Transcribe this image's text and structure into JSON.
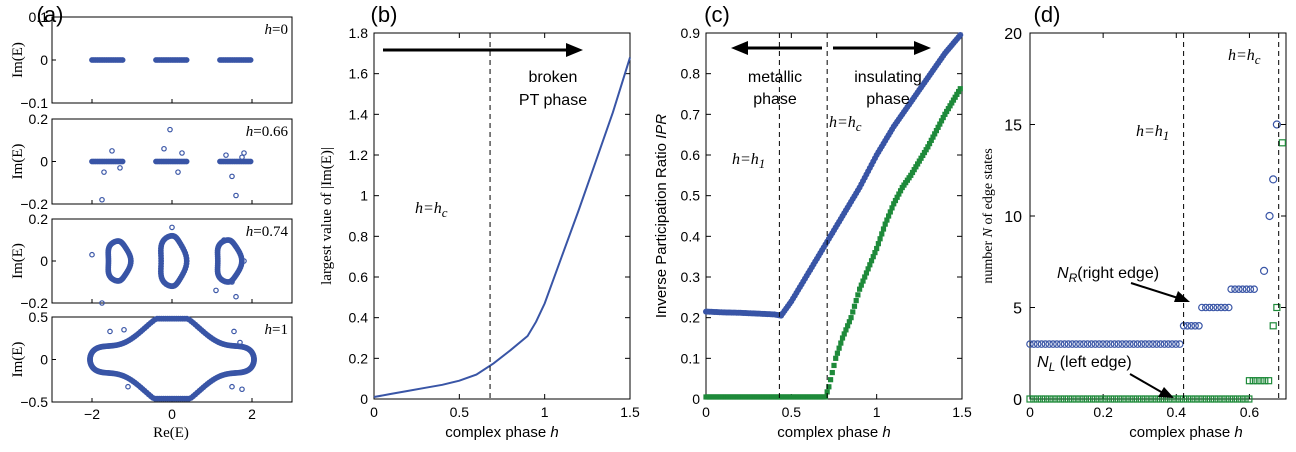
{
  "colors": {
    "blue": "#3955a6",
    "green": "#1e8a3a",
    "axis": "#000000"
  },
  "chart_data": [
    {
      "panel": "(a)",
      "type": "scatter",
      "xlabel": "Re(E)",
      "ylabel": "Im(E)",
      "xticks": [
        "−2",
        "0",
        "2"
      ],
      "subplots": [
        {
          "label": "h=0",
          "yticks": [
            "0.1",
            "0",
            "−0.1"
          ],
          "ylim": [
            -0.1,
            0.1
          ],
          "bands": [
            [
              -2.0,
              -1.2
            ],
            [
              -0.4,
              0.4
            ],
            [
              1.2,
              2.0
            ]
          ],
          "scatter": []
        },
        {
          "label": "h=0.66",
          "yticks": [
            "0.2",
            "0",
            "−0.2"
          ],
          "ylim": [
            -0.2,
            0.2
          ],
          "bands": [
            [
              -2.0,
              -1.2
            ],
            [
              -0.4,
              0.4
            ],
            [
              1.2,
              2.0
            ]
          ],
          "scatter": [
            [
              -1.5,
              0.05
            ],
            [
              -1.7,
              -0.05
            ],
            [
              -1.3,
              -0.03
            ],
            [
              -1.75,
              -0.18
            ],
            [
              -0.2,
              0.06
            ],
            [
              0.15,
              -0.05
            ],
            [
              0.25,
              0.04
            ],
            [
              -0.05,
              0.15
            ],
            [
              1.35,
              0.03
            ],
            [
              1.5,
              -0.07
            ],
            [
              1.8,
              0.04
            ],
            [
              1.6,
              -0.16
            ],
            [
              1.75,
              0.02
            ]
          ]
        },
        {
          "label": "h=0.74",
          "yticks": [
            "0.2",
            "0",
            "−0.2"
          ],
          "ylim": [
            -0.2,
            0.2
          ],
          "loops": [
            [
              -1.35,
              0,
              0.28,
              0.095
            ],
            [
              0,
              0,
              0.32,
              0.12
            ],
            [
              1.4,
              0,
              0.3,
              0.1
            ]
          ],
          "scatter": [
            [
              -1.75,
              -0.2
            ],
            [
              -2.0,
              0.03
            ],
            [
              0.0,
              0.16
            ],
            [
              1.3,
              0.1
            ],
            [
              1.5,
              -0.1
            ],
            [
              1.6,
              -0.17
            ],
            [
              1.1,
              -0.14
            ],
            [
              1.8,
              0.0
            ]
          ]
        },
        {
          "label": "h=1",
          "yticks": [
            "0.5",
            "0",
            "−0.5"
          ],
          "ylim": [
            -0.5,
            0.5
          ],
          "curve": "peanut",
          "scatter": [
            [
              -1.55,
              0.33
            ],
            [
              1.55,
              0.33
            ],
            [
              1.7,
              0.2
            ],
            [
              1.5,
              -0.32
            ],
            [
              -1.1,
              -0.32
            ],
            [
              1.75,
              -0.35
            ],
            [
              -1.2,
              0.35
            ]
          ]
        }
      ]
    },
    {
      "panel": "(b)",
      "type": "line",
      "xlabel": "complex phase h",
      "ylabel": "largest value of |Im(E)|",
      "xlim": [
        0,
        1.5
      ],
      "ylim": [
        0,
        1.8
      ],
      "xticks": [
        0,
        0.5,
        1,
        1.5
      ],
      "yticks": [
        0,
        0.2,
        0.4,
        0.6,
        0.8,
        1,
        1.2,
        1.4,
        1.6,
        1.8
      ],
      "x": [
        0,
        0.1,
        0.2,
        0.3,
        0.4,
        0.5,
        0.6,
        0.7,
        0.8,
        0.9,
        0.95,
        1.0,
        1.1,
        1.2,
        1.3,
        1.4,
        1.5
      ],
      "y": [
        0.01,
        0.025,
        0.04,
        0.055,
        0.07,
        0.09,
        0.12,
        0.175,
        0.24,
        0.31,
        0.38,
        0.47,
        0.7,
        0.93,
        1.17,
        1.41,
        1.68
      ],
      "vline": 0.68,
      "vline_label": "h=h_c",
      "annotation": [
        "broken",
        "PT phase"
      ]
    },
    {
      "panel": "(c)",
      "type": "scatter",
      "xlabel": "complex phase h",
      "ylabel": "Inverse Participation Ratio IPR",
      "xlim": [
        0,
        1.5
      ],
      "ylim": [
        0,
        0.9
      ],
      "xticks": [
        0,
        0.5,
        1,
        1.5
      ],
      "yticks": [
        0,
        0.1,
        0.2,
        0.3,
        0.4,
        0.5,
        0.6,
        0.7,
        0.8,
        0.9
      ],
      "series": [
        {
          "color": "blue",
          "marker": "circle",
          "x": [
            0,
            0.1,
            0.2,
            0.3,
            0.4,
            0.44,
            0.5,
            0.6,
            0.7,
            0.8,
            0.9,
            1.0,
            1.1,
            1.2,
            1.3,
            1.4,
            1.5
          ],
          "y": [
            0.215,
            0.213,
            0.212,
            0.21,
            0.208,
            0.205,
            0.24,
            0.31,
            0.38,
            0.45,
            0.52,
            0.6,
            0.67,
            0.73,
            0.79,
            0.85,
            0.9
          ]
        },
        {
          "color": "green",
          "marker": "square",
          "x": [
            0,
            0.1,
            0.2,
            0.3,
            0.4,
            0.5,
            0.6,
            0.7,
            0.72,
            0.76,
            0.8,
            0.85,
            0.9,
            0.95,
            1.0,
            1.05,
            1.1,
            1.15,
            1.2,
            1.3,
            1.4,
            1.5
          ],
          "y": [
            0.005,
            0.005,
            0.005,
            0.005,
            0.005,
            0.005,
            0.005,
            0.005,
            0.03,
            0.1,
            0.15,
            0.2,
            0.27,
            0.32,
            0.37,
            0.43,
            0.48,
            0.52,
            0.55,
            0.62,
            0.7,
            0.77
          ]
        }
      ],
      "vlines": [
        {
          "x": 0.43,
          "label": "h=h_1"
        },
        {
          "x": 0.71,
          "label": "h=h_c"
        }
      ],
      "annotations": [
        [
          "metallic",
          "phase"
        ],
        [
          "insulating",
          "phase"
        ]
      ]
    },
    {
      "panel": "(d)",
      "type": "scatter",
      "xlabel": "complex phase h",
      "ylabel": "number N of edge states",
      "xlim": [
        0,
        0.7
      ],
      "ylim": [
        0,
        20
      ],
      "xticks": [
        0,
        0.2,
        0.4,
        0.6
      ],
      "yticks": [
        0,
        5,
        10,
        15,
        20
      ],
      "series": [
        {
          "name": "N_R (right edge)",
          "color": "blue",
          "marker": "circle",
          "steps": [
            [
              0,
              0.42,
              3
            ],
            [
              0.42,
              0.47,
              4
            ],
            [
              0.47,
              0.55,
              5
            ],
            [
              0.55,
              0.62,
              6
            ]
          ],
          "points": [
            [
              0.64,
              7
            ],
            [
              0.655,
              10
            ],
            [
              0.665,
              12
            ],
            [
              0.675,
              15
            ]
          ]
        },
        {
          "name": "N_L (left edge)",
          "color": "green",
          "marker": "square",
          "steps": [
            [
              0,
              0.6,
              0
            ],
            [
              0.6,
              0.655,
              1
            ]
          ],
          "points": [
            [
              0.665,
              4
            ],
            [
              0.675,
              5
            ],
            [
              0.69,
              14
            ]
          ]
        }
      ],
      "vlines": [
        {
          "x": 0.42,
          "label": "h=h_1"
        },
        {
          "x": 0.68,
          "label": "h=h_c"
        }
      ]
    }
  ]
}
